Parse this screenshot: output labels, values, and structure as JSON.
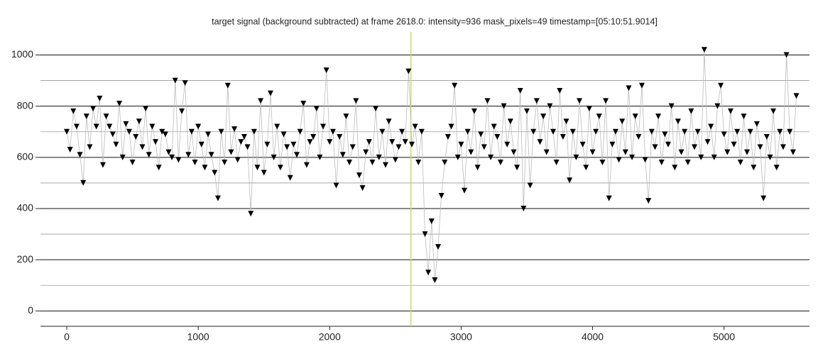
{
  "chart_data": {
    "type": "line",
    "title": "target signal (background subtracted) at frame 2618.0: intensity=936 mask_pixels=49 timestamp=[05:10:51.9014]",
    "x": [
      0,
      25,
      50,
      75,
      100,
      125,
      150,
      175,
      200,
      225,
      250,
      275,
      300,
      325,
      350,
      375,
      400,
      425,
      450,
      475,
      500,
      525,
      550,
      575,
      600,
      625,
      650,
      675,
      700,
      725,
      750,
      775,
      800,
      825,
      850,
      875,
      900,
      925,
      950,
      975,
      1000,
      1025,
      1050,
      1075,
      1100,
      1125,
      1150,
      1175,
      1200,
      1225,
      1250,
      1275,
      1300,
      1325,
      1350,
      1375,
      1400,
      1425,
      1450,
      1475,
      1500,
      1525,
      1550,
      1575,
      1600,
      1625,
      1650,
      1675,
      1700,
      1725,
      1750,
      1775,
      1800,
      1825,
      1850,
      1875,
      1900,
      1925,
      1950,
      1975,
      2000,
      2025,
      2050,
      2075,
      2100,
      2125,
      2150,
      2175,
      2200,
      2225,
      2250,
      2275,
      2300,
      2325,
      2350,
      2375,
      2400,
      2425,
      2450,
      2475,
      2500,
      2525,
      2550,
      2575,
      2600,
      2625,
      2650,
      2675,
      2700,
      2725,
      2750,
      2775,
      2800,
      2825,
      2850,
      2875,
      2900,
      2925,
      2950,
      2975,
      3000,
      3025,
      3050,
      3075,
      3100,
      3125,
      3150,
      3175,
      3200,
      3225,
      3250,
      3275,
      3300,
      3325,
      3350,
      3375,
      3400,
      3425,
      3450,
      3475,
      3500,
      3525,
      3550,
      3575,
      3600,
      3625,
      3650,
      3675,
      3700,
      3725,
      3750,
      3775,
      3800,
      3825,
      3850,
      3875,
      3900,
      3925,
      3950,
      3975,
      4000,
      4025,
      4050,
      4075,
      4100,
      4125,
      4150,
      4175,
      4200,
      4225,
      4250,
      4275,
      4300,
      4325,
      4350,
      4375,
      4400,
      4425,
      4450,
      4475,
      4500,
      4525,
      4550,
      4575,
      4600,
      4625,
      4650,
      4675,
      4700,
      4725,
      4750,
      4775,
      4800,
      4825,
      4850,
      4875,
      4900,
      4925,
      4950,
      4975,
      5000,
      5025,
      5050,
      5075,
      5100,
      5125,
      5150,
      5175,
      5200,
      5225,
      5250,
      5275,
      5300,
      5325,
      5350,
      5375,
      5400,
      5425,
      5450,
      5475,
      5500,
      5525,
      5550
    ],
    "series": [
      {
        "color": "#000000",
        "line_color": "#bbbbbb",
        "values": [
          700,
          630,
          780,
          720,
          610,
          500,
          760,
          640,
          790,
          720,
          830,
          570,
          760,
          720,
          690,
          650,
          810,
          600,
          730,
          700,
          580,
          680,
          740,
          640,
          790,
          610,
          720,
          660,
          560,
          700,
          690,
          620,
          600,
          900,
          590,
          780,
          890,
          610,
          700,
          580,
          720,
          650,
          560,
          690,
          610,
          540,
          440,
          700,
          580,
          880,
          620,
          710,
          590,
          660,
          680,
          640,
          380,
          700,
          560,
          820,
          540,
          650,
          850,
          600,
          720,
          560,
          690,
          640,
          520,
          650,
          610,
          700,
          810,
          570,
          660,
          680,
          790,
          600,
          720,
          940,
          660,
          700,
          490,
          680,
          610,
          760,
          580,
          640,
          820,
          530,
          480,
          620,
          660,
          580,
          790,
          600,
          700,
          570,
          740,
          660,
          590,
          640,
          700,
          660,
          936,
          650,
          720,
          580,
          700,
          300,
          150,
          350,
          120,
          250,
          450,
          580,
          680,
          720,
          880,
          600,
          650,
          470,
          700,
          620,
          780,
          560,
          690,
          640,
          820,
          600,
          720,
          680,
          580,
          800,
          650,
          740,
          620,
          560,
          860,
          400,
          780,
          490,
          700,
          820,
          660,
          760,
          620,
          800,
          700,
          580,
          860,
          680,
          740,
          510,
          700,
          600,
          820,
          650,
          560,
          790,
          620,
          700,
          760,
          580,
          820,
          440,
          650,
          700,
          590,
          740,
          620,
          870,
          600,
          760,
          680,
          880,
          590,
          430,
          700,
          640,
          760,
          580,
          690,
          650,
          800,
          560,
          740,
          620,
          700,
          580,
          780,
          640,
          700,
          600,
          1020,
          660,
          720,
          600,
          800,
          880,
          690,
          620,
          780,
          650,
          700,
          580,
          760,
          620,
          700,
          560,
          730,
          640,
          440,
          680,
          600,
          780,
          560,
          700,
          640,
          1000,
          700,
          620,
          840
        ]
      }
    ],
    "cursor_x": 2618,
    "cursor_color": "#c8d96a",
    "xlim": [
      -200,
      5650
    ],
    "xticks": [
      0,
      1000,
      2000,
      3000,
      4000,
      5000
    ],
    "ylim": [
      -60,
      1090
    ],
    "yticks": [
      0,
      200,
      400,
      600,
      800,
      1000
    ],
    "yminor": [
      100,
      300,
      500,
      700,
      900
    ],
    "grid": true
  }
}
